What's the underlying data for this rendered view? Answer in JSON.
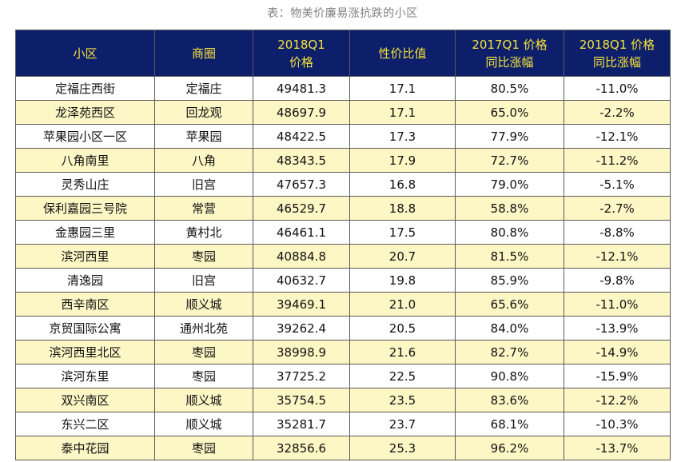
{
  "caption": "表：物美价廉易涨抗跌的小区",
  "colors": {
    "header_bg": "#0d1f6b",
    "header_text": "#f5e23a",
    "row_highlight": "#fdf6c5",
    "row_plain": "#ffffff",
    "caption_text": "#7f7f7f"
  },
  "chart_data": {
    "type": "table",
    "title": "表：物美价廉易涨抗跌的小区",
    "columns": [
      [
        "小区"
      ],
      [
        "商圈"
      ],
      [
        "2018Q1",
        "价格"
      ],
      [
        "性价比值"
      ],
      [
        "2017Q1 价格",
        "同比涨幅"
      ],
      [
        "2018Q1 价格",
        "同比涨幅"
      ]
    ],
    "rows": [
      [
        "定福庄西街",
        "定福庄",
        "49481.3",
        "17.1",
        "80.5%",
        "-11.0%"
      ],
      [
        "龙泽苑西区",
        "回龙观",
        "48697.9",
        "17.1",
        "65.0%",
        "-2.2%"
      ],
      [
        "苹果园小区一区",
        "苹果园",
        "48422.5",
        "17.3",
        "77.9%",
        "-12.1%"
      ],
      [
        "八角南里",
        "八角",
        "48343.5",
        "17.9",
        "72.7%",
        "-11.2%"
      ],
      [
        "灵秀山庄",
        "旧宫",
        "47657.3",
        "16.8",
        "79.0%",
        "-5.1%"
      ],
      [
        "保利嘉园三号院",
        "常营",
        "46529.7",
        "18.8",
        "58.8%",
        "-2.7%"
      ],
      [
        "金惠园三里",
        "黄村北",
        "46461.1",
        "17.5",
        "80.8%",
        "-8.8%"
      ],
      [
        "滨河西里",
        "枣园",
        "40884.8",
        "20.7",
        "81.5%",
        "-12.1%"
      ],
      [
        "清逸园",
        "旧宫",
        "40632.7",
        "19.8",
        "85.9%",
        "-9.8%"
      ],
      [
        "西辛南区",
        "顺义城",
        "39469.1",
        "21.0",
        "65.6%",
        "-11.0%"
      ],
      [
        "京贸国际公寓",
        "通州北苑",
        "39262.4",
        "20.5",
        "84.0%",
        "-13.9%"
      ],
      [
        "滨河西里北区",
        "枣园",
        "38998.9",
        "21.6",
        "82.7%",
        "-14.9%"
      ],
      [
        "滨河东里",
        "枣园",
        "37725.2",
        "22.5",
        "90.8%",
        "-15.9%"
      ],
      [
        "双兴南区",
        "顺义城",
        "35754.5",
        "23.5",
        "83.6%",
        "-12.2%"
      ],
      [
        "东兴二区",
        "顺义城",
        "35281.7",
        "23.7",
        "68.1%",
        "-10.3%"
      ],
      [
        "泰中花园",
        "枣园",
        "32856.6",
        "25.3",
        "96.2%",
        "-13.7%"
      ]
    ]
  }
}
